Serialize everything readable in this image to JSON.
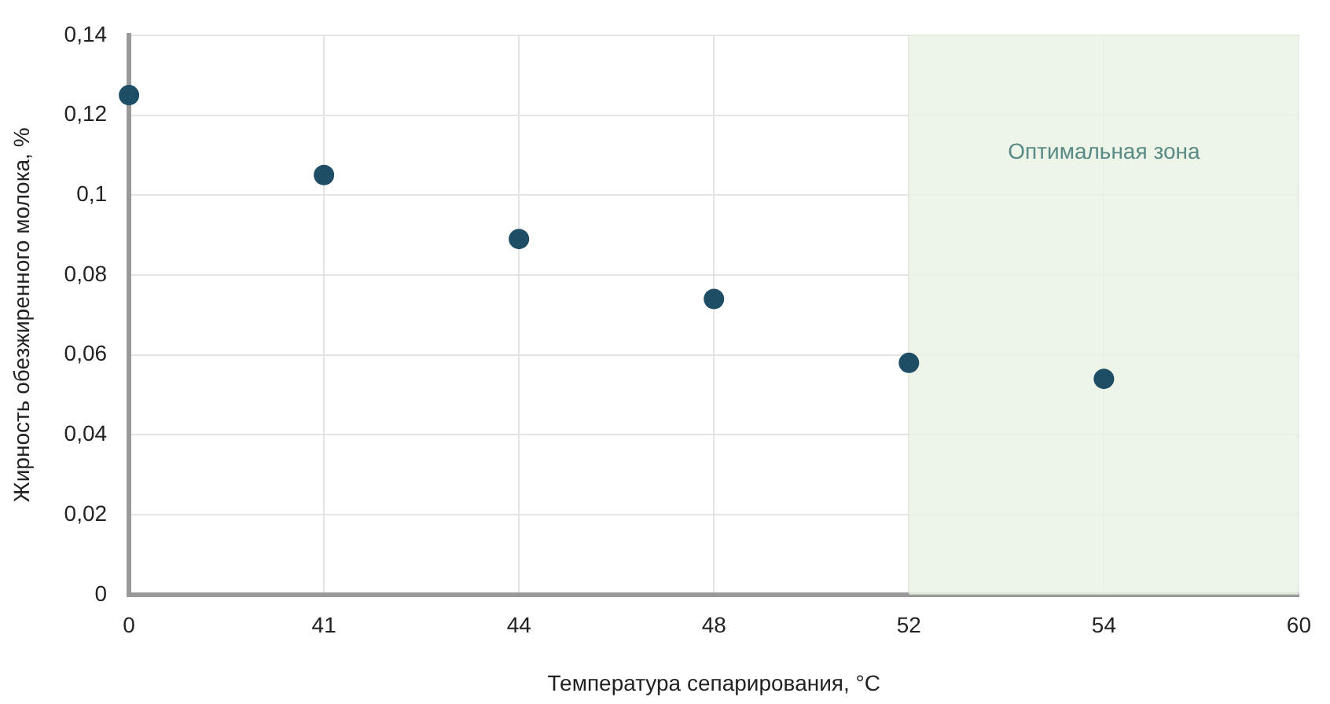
{
  "chart_data": {
    "type": "scatter",
    "xlabel": "Температура сепарирования, °C",
    "ylabel": "Жирность обезжиренного молока, %",
    "categories": [
      "0",
      "41",
      "44",
      "48",
      "52",
      "54",
      "60"
    ],
    "series": [
      {
        "color": "#1d4e66",
        "values": [
          0.125,
          0.105,
          0.089,
          0.074,
          0.058,
          0.054,
          null
        ]
      }
    ],
    "ylim": [
      0,
      0.14
    ],
    "yticks": [
      0,
      {
        "value": 0.02,
        "label": "0,02"
      },
      {
        "value": 0.04,
        "label": "0,04"
      },
      {
        "value": 0.06,
        "label": "0,06"
      },
      {
        "value": 0.08,
        "label": "0,08"
      },
      {
        "value": 0.1,
        "label": "0,1"
      },
      {
        "value": 0.12,
        "label": "0,12"
      },
      {
        "value": 0.14,
        "label": "0,14"
      }
    ],
    "bands": [
      {
        "axis": "x",
        "from": "52",
        "to": "60",
        "label": "Оптимальная зона",
        "color": "#eaf3e5"
      }
    ],
    "grid": true,
    "legend": false,
    "marker": "circle"
  }
}
